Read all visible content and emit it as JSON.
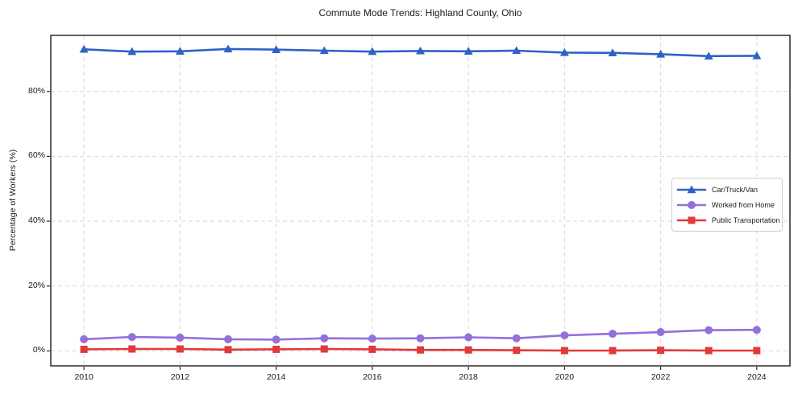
{
  "chart_data": {
    "type": "line",
    "title": "Commute Mode Trends: Highland County, Ohio",
    "xlabel": "",
    "ylabel": "Percentage of Workers (%)",
    "x": [
      2010,
      2011,
      2012,
      2013,
      2014,
      2015,
      2016,
      2017,
      2018,
      2019,
      2020,
      2021,
      2022,
      2023,
      2024
    ],
    "x_tick_labels": [
      "2010",
      "2012",
      "2014",
      "2016",
      "2018",
      "2020",
      "2022",
      "2024"
    ],
    "x_ticks": [
      2010,
      2012,
      2014,
      2016,
      2018,
      2020,
      2022,
      2024
    ],
    "y_ticks": [
      0,
      20,
      40,
      60,
      80
    ],
    "y_tick_labels": [
      "0%",
      "20%",
      "40%",
      "60%",
      "80%"
    ],
    "xlim": [
      2009.31,
      2024.69
    ],
    "ylim": [
      -4.6,
      97.3
    ],
    "grid": true,
    "grid_style": "dashed",
    "legend_position": "center right",
    "series": [
      {
        "name": "Car/Truck/Van",
        "color": "#2e62c6",
        "marker": "triangle",
        "values": [
          93.0,
          92.3,
          92.4,
          93.1,
          92.9,
          92.6,
          92.3,
          92.5,
          92.4,
          92.6,
          92.0,
          91.9,
          91.5,
          90.9,
          91.0
        ]
      },
      {
        "name": "Worked from Home",
        "color": "#9370db",
        "marker": "circle",
        "values": [
          3.6,
          4.3,
          4.1,
          3.6,
          3.5,
          3.9,
          3.8,
          3.9,
          4.2,
          3.9,
          4.8,
          5.3,
          5.8,
          6.4,
          6.5
        ]
      },
      {
        "name": "Public Transportation",
        "color": "#e03a3a",
        "marker": "square",
        "values": [
          0.5,
          0.6,
          0.6,
          0.4,
          0.5,
          0.6,
          0.5,
          0.3,
          0.3,
          0.2,
          0.1,
          0.1,
          0.2,
          0.1,
          0.1
        ]
      }
    ],
    "colors": {
      "grid": "#d8d8d8",
      "frame": "#2a2a2a",
      "text": "#1a1a1a",
      "background": "#ffffff"
    }
  }
}
